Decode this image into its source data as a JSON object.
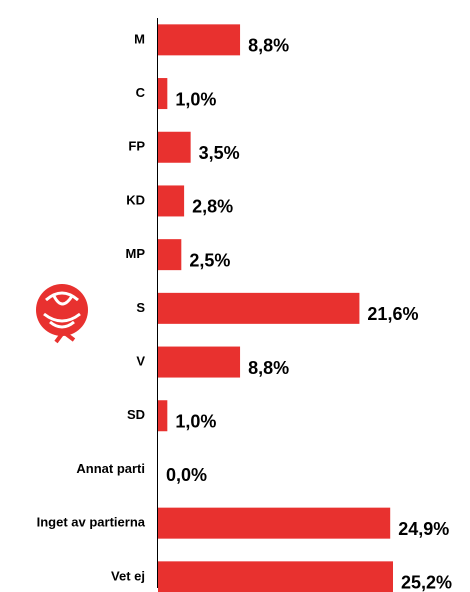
{
  "chart_data": {
    "type": "barh",
    "categories": [
      "M",
      "C",
      "FP",
      "KD",
      "MP",
      "S",
      "V",
      "SD",
      "Annat parti",
      "Inget av partierna",
      "Vet ej"
    ],
    "values": [
      8.8,
      1.0,
      3.5,
      2.8,
      2.5,
      21.6,
      8.8,
      1.0,
      0.0,
      24.9,
      25.2
    ],
    "value_labels": [
      "8,8%",
      "1,0%",
      "3,5%",
      "2,8%",
      "2,5%",
      "21,6%",
      "8,8%",
      "1,0%",
      "0,0%",
      "24,9%",
      "25,2%"
    ],
    "color": "#e8312f"
  }
}
